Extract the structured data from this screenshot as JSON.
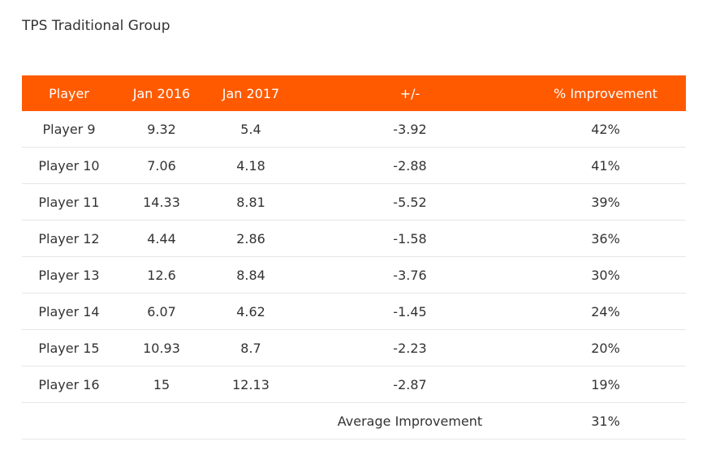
{
  "title": "TPS Traditional Group",
  "table": {
    "headers": [
      "Player",
      "Jan 2016",
      "Jan 2017",
      "+/-",
      "% Improvement"
    ],
    "rows": [
      [
        "Player 9",
        "9.32",
        "5.4",
        "-3.92",
        "42%"
      ],
      [
        "Player 10",
        "7.06",
        "4.18",
        "-2.88",
        "41%"
      ],
      [
        "Player 11",
        "14.33",
        "8.81",
        "-5.52",
        "39%"
      ],
      [
        "Player 12",
        "4.44",
        "2.86",
        "-1.58",
        "36%"
      ],
      [
        "Player 13",
        "12.6",
        "8.84",
        "-3.76",
        "30%"
      ],
      [
        "Player 14",
        "6.07",
        "4.62",
        "-1.45",
        "24%"
      ],
      [
        "Player 15",
        "10.93",
        "8.7",
        "-2.23",
        "20%"
      ],
      [
        "Player 16",
        "15",
        "12.13",
        "-2.87",
        "19%"
      ]
    ],
    "summary": {
      "label": "Average Improvement",
      "value": "31%"
    }
  },
  "colors": {
    "header_background": "#ff5a00",
    "header_text": "#ffffff",
    "row_divider": "#e6e6e6",
    "text": "#333333"
  }
}
